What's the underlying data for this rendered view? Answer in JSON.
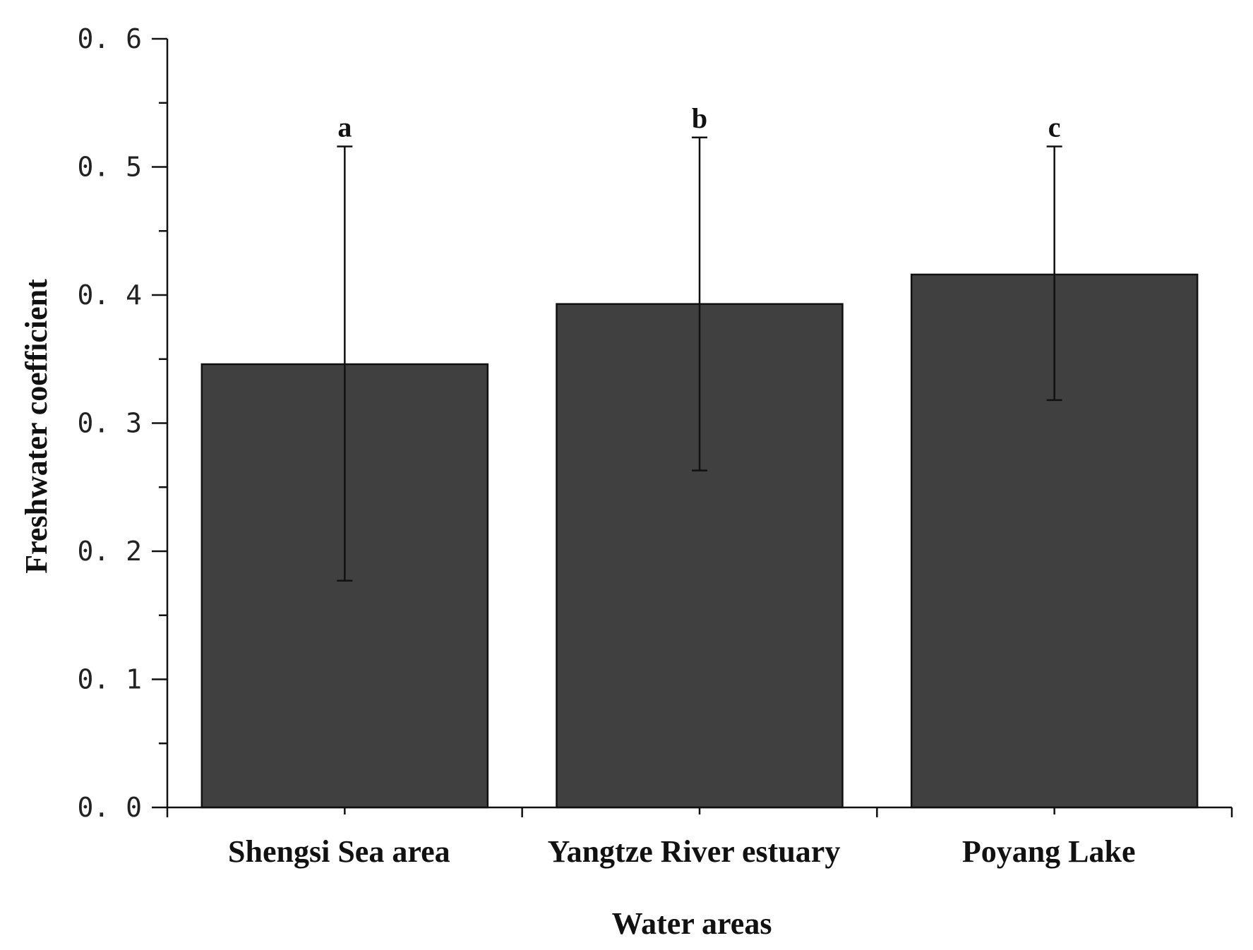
{
  "chart_data": {
    "type": "bar",
    "xlabel": "Water areas",
    "ylabel": "Freshwater coefficient",
    "ylim": [
      0,
      0.6
    ],
    "yticks": [
      "0.0",
      "0.1",
      "0.2",
      "0.3",
      "0.4",
      "0.5",
      "0.6"
    ],
    "categories": [
      "Shengsi Sea area",
      "Yangtze River estuary",
      "Poyang Lake"
    ],
    "values": [
      0.346,
      0.393,
      0.416
    ],
    "error_low": [
      0.177,
      0.263,
      0.318
    ],
    "error_high": [
      0.516,
      0.523,
      0.516
    ],
    "significance_labels": [
      "a",
      "b",
      "c"
    ],
    "bar_color": "#404040",
    "grid": false
  }
}
